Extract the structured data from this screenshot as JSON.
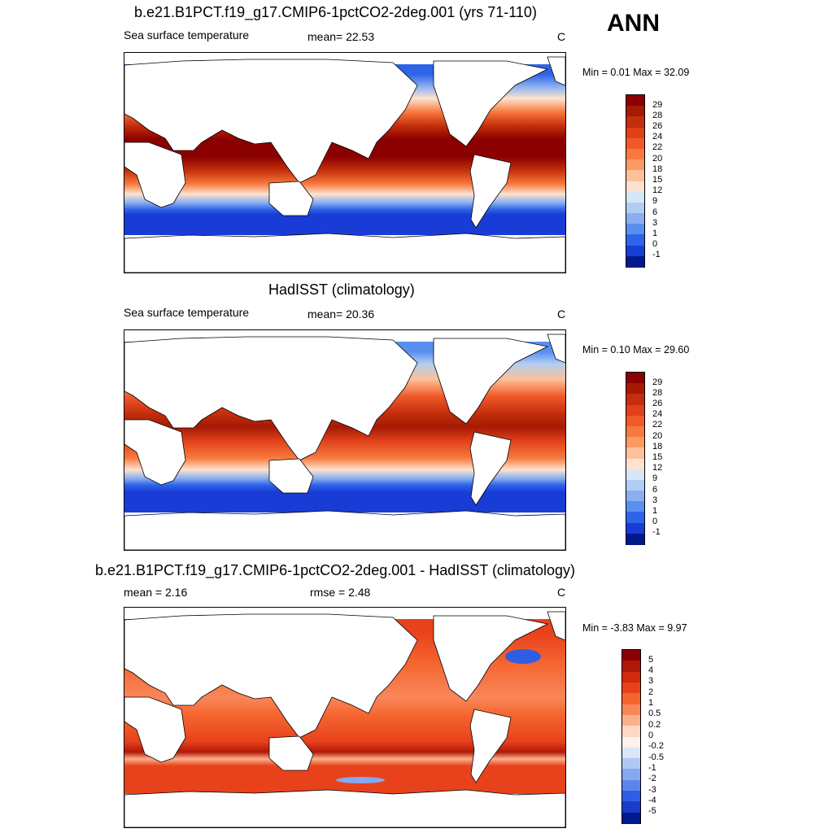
{
  "season": "ANN",
  "unit": "C",
  "panels": [
    {
      "title": "b.e21.B1PCT.f19_g17.CMIP6-1pctCO2-2deg.001 (yrs 71-110)",
      "left_label": "Sea surface temperature",
      "stat_label": "mean=  22.53",
      "unit": "C",
      "minmax": "Min =   0.01 Max =  32.09"
    },
    {
      "title": "HadISST (climatology)",
      "left_label": "Sea surface temperature",
      "stat_label": "mean=  20.36",
      "unit": "C",
      "minmax": "Min =   0.10 Max =  29.60"
    },
    {
      "title": "b.e21.B1PCT.f19_g17.CMIP6-1pctCO2-2deg.001 - HadISST (climatology)",
      "left_label": "mean =   2.16",
      "stat_label": "rmse =   2.48",
      "unit": "C",
      "minmax": "Min =  -3.83 Max =   9.97"
    }
  ],
  "chart_data": [
    {
      "type": "heatmap",
      "title": "b.e21.B1PCT.f19_g17.CMIP6-1pctCO2-2deg.001 (yrs 71-110)",
      "variable": "Sea surface temperature",
      "mean": 22.53,
      "min": 0.01,
      "max": 32.09,
      "unit": "C",
      "colorbar_levels": [
        29,
        28,
        26,
        24,
        22,
        20,
        18,
        15,
        12,
        9,
        6,
        3,
        1,
        0,
        -1
      ],
      "colorbar_colors": [
        "#8b0000",
        "#a51a05",
        "#c42e0c",
        "#e0411a",
        "#f05a2a",
        "#f8793d",
        "#fb9a63",
        "#fcc19a",
        "#fde3cf",
        "#d6e6f8",
        "#b3cdf2",
        "#8aaff0",
        "#5a8ff0",
        "#2e64e8",
        "#1a3cd6",
        "#001a8c"
      ]
    },
    {
      "type": "heatmap",
      "title": "HadISST (climatology)",
      "variable": "Sea surface temperature",
      "mean": 20.36,
      "min": 0.1,
      "max": 29.6,
      "unit": "C",
      "colorbar_levels": [
        29,
        28,
        26,
        24,
        22,
        20,
        18,
        15,
        12,
        9,
        6,
        3,
        1,
        0,
        -1
      ],
      "colorbar_colors": [
        "#8b0000",
        "#a51a05",
        "#c42e0c",
        "#e0411a",
        "#f05a2a",
        "#f8793d",
        "#fb9a63",
        "#fcc19a",
        "#fde3cf",
        "#d6e6f8",
        "#b3cdf2",
        "#8aaff0",
        "#5a8ff0",
        "#2e64e8",
        "#1a3cd6",
        "#001a8c"
      ]
    },
    {
      "type": "heatmap",
      "title": "b.e21.B1PCT.f19_g17.CMIP6-1pctCO2-2deg.001 - HadISST (climatology)",
      "mean": 2.16,
      "rmse": 2.48,
      "min": -3.83,
      "max": 9.97,
      "unit": "C",
      "colorbar_levels": [
        "5",
        "4",
        "3",
        "2",
        "1",
        "0.5",
        "0.2",
        "0",
        "-0.2",
        "-0.5",
        "-1",
        "-2",
        "-3",
        "-4",
        "-5"
      ],
      "colorbar_colors": [
        "#8b0000",
        "#b01808",
        "#d02a0c",
        "#e8421c",
        "#f5652f",
        "#f9875a",
        "#fcb08a",
        "#fdd9c4",
        "#fff2ea",
        "#d8e6f8",
        "#b0c9f2",
        "#86a8ee",
        "#5a86ec",
        "#2f5ee4",
        "#1a3ccc",
        "#001a8c"
      ]
    }
  ]
}
